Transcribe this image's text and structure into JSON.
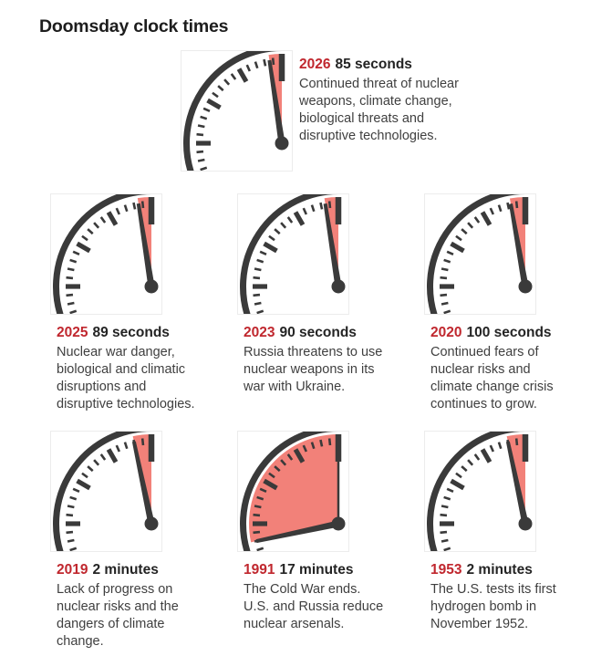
{
  "title": "Doomsday clock times",
  "colors": {
    "title_color": "#1d1d1d",
    "year_red": "#c0272e",
    "time_color": "#242424",
    "body_color": "#3f3f3f",
    "clock_dark": "#3a3a3a",
    "wedge_red": "#f28179",
    "box_border": "#ececec"
  },
  "clocks": [
    {
      "year": "2026",
      "time_label": "85 seconds",
      "minutes_to_midnight": 1.4167,
      "midnight_line": false,
      "description": "Continued threat of nuclear\nweapons, climate change,\nbiological threats and\ndisruptive technologies."
    },
    {
      "year": "2025",
      "time_label": "89 seconds",
      "minutes_to_midnight": 1.4833,
      "midnight_line": false,
      "description": "Nuclear war danger,\nbiological and climatic\ndisruptions and\ndisruptive technologies."
    },
    {
      "year": "2023",
      "time_label": "90 seconds",
      "minutes_to_midnight": 1.5,
      "midnight_line": false,
      "description": "Russia threatens to use\nnuclear weapons in its\nwar with Ukraine."
    },
    {
      "year": "2020",
      "time_label": "100 seconds",
      "minutes_to_midnight": 1.6667,
      "midnight_line": false,
      "description": "Continued fears of\nnuclear risks and\nclimate change crisis\ncontinues to grow."
    },
    {
      "year": "2019",
      "time_label": "2 minutes",
      "minutes_to_midnight": 2,
      "midnight_line": false,
      "description": "Lack of progress on\nnuclear risks and the\ndangers of climate\nchange."
    },
    {
      "year": "1991",
      "time_label": "17 minutes",
      "minutes_to_midnight": 17,
      "midnight_line": true,
      "description": "The Cold War ends.\nU.S. and Russia reduce\nnuclear arsenals."
    },
    {
      "year": "1953",
      "time_label": "2 minutes",
      "minutes_to_midnight": 2,
      "midnight_line": false,
      "description": "The U.S. tests its first\nhydrogen bomb in\nNovember 1952."
    }
  ],
  "chart_data": {
    "type": "gauge",
    "title": "Doomsday clock times",
    "unit": "time to midnight",
    "layout": "small multiples, quarter clock faces (9-to-12 quadrant), red wedge spans from hand position to midnight",
    "points": [
      {
        "year": 2026,
        "label": "85 seconds",
        "minutes_to_midnight": 1.4167
      },
      {
        "year": 2025,
        "label": "89 seconds",
        "minutes_to_midnight": 1.4833
      },
      {
        "year": 2023,
        "label": "90 seconds",
        "minutes_to_midnight": 1.5
      },
      {
        "year": 2020,
        "label": "100 seconds",
        "minutes_to_midnight": 1.6667
      },
      {
        "year": 2019,
        "label": "2 minutes",
        "minutes_to_midnight": 2
      },
      {
        "year": 1991,
        "label": "17 minutes",
        "minutes_to_midnight": 17
      },
      {
        "year": 1953,
        "label": "2 minutes",
        "minutes_to_midnight": 2
      }
    ]
  }
}
